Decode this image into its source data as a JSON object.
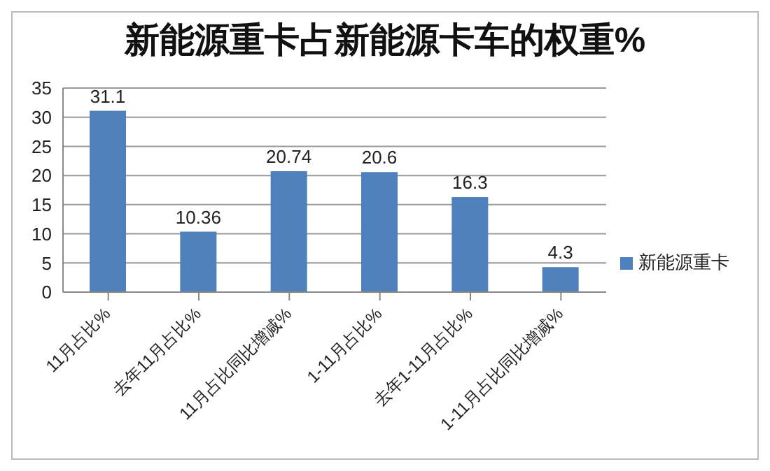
{
  "chart_data": {
    "type": "bar",
    "title": "新能源重卡占新能源卡车的权重%",
    "categories": [
      "11月占比%",
      "去年11月占比%",
      "11月占比同比增减%",
      "1-11月占比%",
      "去年1-11月占比%",
      "1-11月占比同比增减%"
    ],
    "series": [
      {
        "name": "新能源重卡",
        "color": "#4f81bd",
        "values": [
          31.1,
          10.36,
          20.74,
          20.6,
          16.3,
          4.3
        ]
      }
    ],
    "ylim": [
      0,
      35
    ],
    "yticks": [
      0,
      5,
      10,
      15,
      20,
      25,
      30,
      35
    ],
    "grid": "y",
    "legend": "right",
    "data_labels": true
  }
}
